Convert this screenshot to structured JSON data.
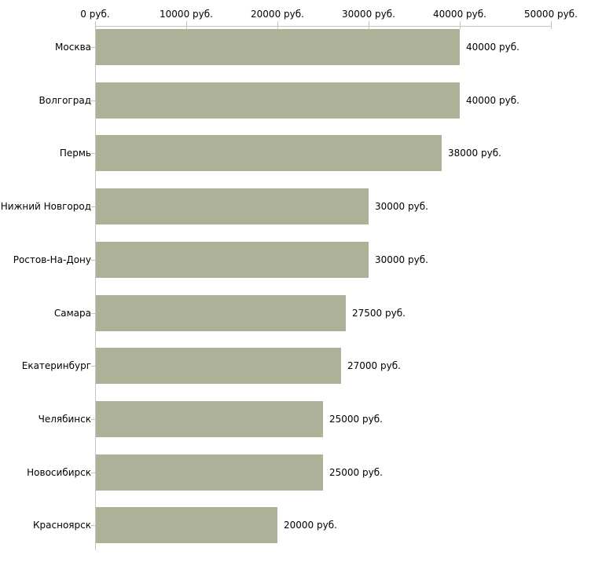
{
  "chart_data": {
    "type": "bar",
    "orientation": "horizontal",
    "title": "",
    "xlabel": "",
    "ylabel": "",
    "xlim": [
      0,
      50000
    ],
    "grid": false,
    "legend": "none",
    "x_axis_position": "top",
    "x_ticks": [
      {
        "value": 0,
        "label": "0 руб."
      },
      {
        "value": 10000,
        "label": "10000 руб."
      },
      {
        "value": 20000,
        "label": "20000 руб."
      },
      {
        "value": 30000,
        "label": "30000 руб."
      },
      {
        "value": 40000,
        "label": "40000 руб."
      },
      {
        "value": 50000,
        "label": "50000 руб."
      }
    ],
    "categories": [
      "Москва",
      "Волгоград",
      "Пермь",
      "Нижний Новгород",
      "Ростов-На-Дону",
      "Самара",
      "Екатеринбург",
      "Челябинск",
      "Новосибирск",
      "Красноярск"
    ],
    "values": [
      40000,
      40000,
      38000,
      30000,
      30000,
      27500,
      27000,
      25000,
      25000,
      20000
    ],
    "bars": [
      {
        "category": "Москва",
        "value": 40000,
        "value_label": "40000 руб."
      },
      {
        "category": "Волгоград",
        "value": 40000,
        "value_label": "40000 руб."
      },
      {
        "category": "Пермь",
        "value": 38000,
        "value_label": "38000 руб."
      },
      {
        "category": "Нижний Новгород",
        "value": 30000,
        "value_label": "30000 руб."
      },
      {
        "category": "Ростов-На-Дону",
        "value": 30000,
        "value_label": "30000 руб."
      },
      {
        "category": "Самара",
        "value": 27500,
        "value_label": "27500 руб."
      },
      {
        "category": "Екатеринбург",
        "value": 27000,
        "value_label": "27000 руб."
      },
      {
        "category": "Челябинск",
        "value": 25000,
        "value_label": "25000 руб."
      },
      {
        "category": "Новосибирск",
        "value": 25000,
        "value_label": "25000 руб."
      },
      {
        "category": "Красноярск",
        "value": 20000,
        "value_label": "20000 руб."
      }
    ],
    "colors": {
      "bar_fill": "#acb198",
      "axis_line": "#c5c5c5",
      "tick_mark": "#cbc5a4",
      "text": "#000000",
      "background": "#ffffff"
    }
  }
}
